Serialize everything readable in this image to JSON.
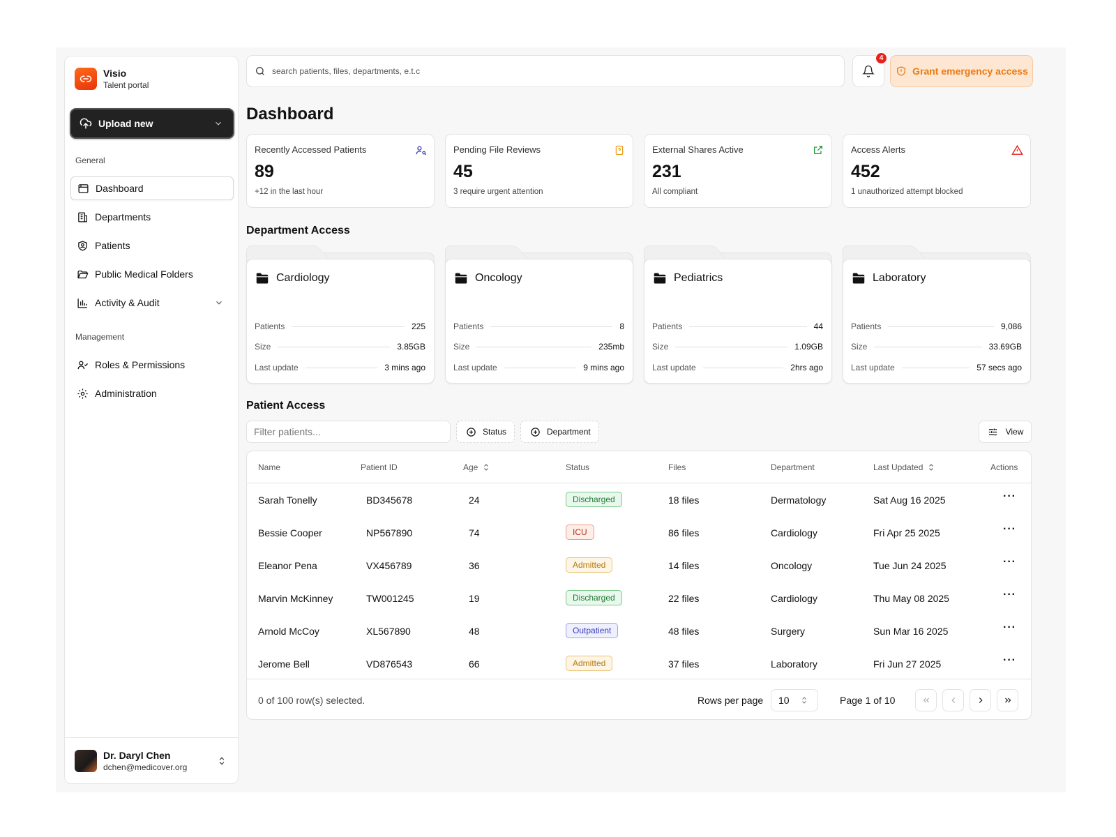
{
  "brand": {
    "name": "Visio",
    "subtitle": "Talent portal"
  },
  "upload_label": "Upload new",
  "sidebar": {
    "general_label": "General",
    "general": [
      {
        "label": "Dashboard",
        "icon": "dashboard-icon",
        "active": true
      },
      {
        "label": "Departments",
        "icon": "building-icon"
      },
      {
        "label": "Patients",
        "icon": "shield-user-icon"
      },
      {
        "label": "Public Medical Folders",
        "icon": "folder-open-icon"
      },
      {
        "label": "Activity & Audit",
        "icon": "bar-chart-icon",
        "expandable": true
      }
    ],
    "management_label": "Management",
    "management": [
      {
        "label": "Roles & Permissions",
        "icon": "users-icon"
      },
      {
        "label": "Administration",
        "icon": "gear-icon"
      }
    ]
  },
  "user": {
    "name": "Dr. Daryl Chen",
    "email": "dchen@medicover.org"
  },
  "search": {
    "placeholder": "search patients, files, departments, e.t.c"
  },
  "notifications": {
    "count": "4"
  },
  "grant_label": "Grant emergency access",
  "page_title": "Dashboard",
  "stats": [
    {
      "title": "Recently Accessed Patients",
      "value": "89",
      "sub": "+12 in the last hour",
      "icon": "user-search-icon",
      "color": "#3b3dbd"
    },
    {
      "title": "Pending File Reviews",
      "value": "45",
      "sub": "3 require urgent attention",
      "icon": "file-question-icon",
      "color": "#ee9a10"
    },
    {
      "title": "External Shares Active",
      "value": "231",
      "sub": "All compliant",
      "icon": "external-link-icon",
      "color": "#1d9a3a"
    },
    {
      "title": "Access Alerts",
      "value": "452",
      "sub": "1 unauthorized attempt blocked",
      "icon": "alert-triangle-icon",
      "color": "#e8221b"
    }
  ],
  "dept_title": "Department Access",
  "dept_labels": {
    "patients": "Patients",
    "size": "Size",
    "last_update": "Last update"
  },
  "departments": [
    {
      "name": "Cardiology",
      "patients": "225",
      "size": "3.85GB",
      "last_update": "3 mins ago"
    },
    {
      "name": "Oncology",
      "patients": "8",
      "size": "235mb",
      "last_update": "9 mins ago"
    },
    {
      "name": "Pediatrics",
      "patients": "44",
      "size": "1.09GB",
      "last_update": "2hrs ago"
    },
    {
      "name": "Laboratory",
      "patients": "9,086",
      "size": "33.69GB",
      "last_update": "57 secs ago"
    }
  ],
  "patient_title": "Patient Access",
  "filter": {
    "placeholder": "Filter patients...",
    "status": "Status",
    "department": "Department",
    "view": "View"
  },
  "table": {
    "columns": [
      "Name",
      "Patient ID",
      "Age",
      "Status",
      "Files",
      "Department",
      "Last Updated",
      "Actions"
    ],
    "rows": [
      {
        "name": "Sarah Tonelly",
        "id": "BD345678",
        "age": "24",
        "status": "Discharged",
        "files": "18 files",
        "dept": "Dermatology",
        "updated": "Sat Aug 16 2025"
      },
      {
        "name": "Bessie Cooper",
        "id": "NP567890",
        "age": "74",
        "status": "ICU",
        "files": "86 files",
        "dept": "Cardiology",
        "updated": "Fri Apr 25 2025"
      },
      {
        "name": "Eleanor Pena",
        "id": "VX456789",
        "age": "36",
        "status": "Admitted",
        "files": "14 files",
        "dept": "Oncology",
        "updated": "Tue Jun 24 2025"
      },
      {
        "name": "Marvin McKinney",
        "id": "TW001245",
        "age": "19",
        "status": "Discharged",
        "files": "22 files",
        "dept": "Cardiology",
        "updated": "Thu May 08 2025"
      },
      {
        "name": "Arnold McCoy",
        "id": "XL567890",
        "age": "48",
        "status": "Outpatient",
        "files": "48 files",
        "dept": "Surgery",
        "updated": "Sun Mar 16 2025"
      },
      {
        "name": "Jerome Bell",
        "id": "VD876543",
        "age": "66",
        "status": "Admitted",
        "files": "37 files",
        "dept": "Laboratory",
        "updated": "Fri Jun 27 2025"
      }
    ],
    "selected": "0 of 100 row(s) selected.",
    "rows_per_page_label": "Rows per page",
    "rows_per_page": "10",
    "page": "Page 1 of 10"
  }
}
